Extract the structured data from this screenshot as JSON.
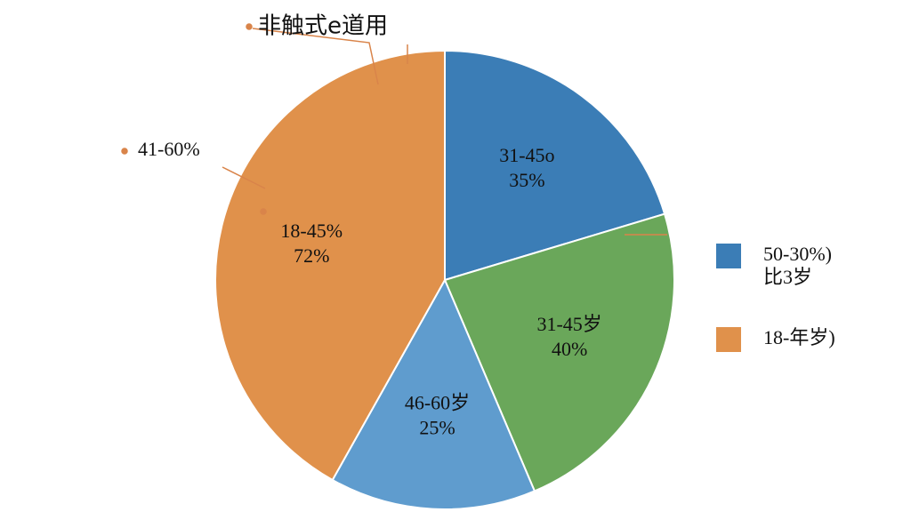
{
  "chart_data": {
    "type": "pie",
    "title": "非触式e道用",
    "categories": [
      "31-45o",
      "31-45岁",
      "46-60岁",
      "18-45%"
    ],
    "values": [
      35,
      40,
      25,
      72
    ],
    "value_labels": [
      "35%",
      "40%",
      "25%",
      "72%"
    ],
    "colors": [
      "#3b7db6",
      "#6aa75a",
      "#5f9cce",
      "#e0914b"
    ],
    "annotations": [
      "41-60%"
    ],
    "legend": [
      {
        "color": "#3b7db6",
        "lines": [
          "50-30%)",
          "比3岁"
        ]
      },
      {
        "color": "#e0914b",
        "lines": [
          "18-年岁)"
        ]
      }
    ]
  }
}
